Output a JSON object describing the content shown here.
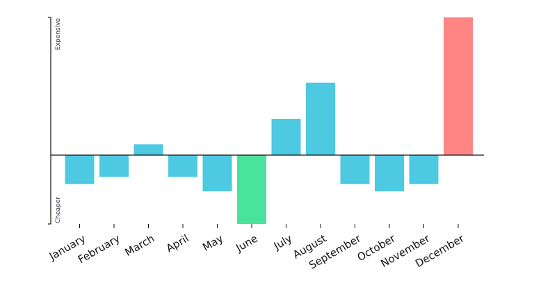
{
  "chart_data": {
    "type": "bar",
    "categories": [
      "January",
      "February",
      "March",
      "April",
      "May",
      "June",
      "July",
      "August",
      "September",
      "October",
      "November",
      "December"
    ],
    "values": [
      -8,
      -6,
      3,
      -6,
      -10,
      -19,
      10,
      20,
      -8,
      -10,
      -8,
      38
    ],
    "ylim": [
      -19,
      38
    ],
    "y_axis_top_label": "Expensive",
    "y_axis_bottom_label": "Cheaper",
    "grid": false,
    "legend": "none",
    "colors": {
      "default": "#4dc9e2",
      "minimum": "#4ae39b",
      "maximum": "#ff8585",
      "axis": "#111111"
    }
  }
}
